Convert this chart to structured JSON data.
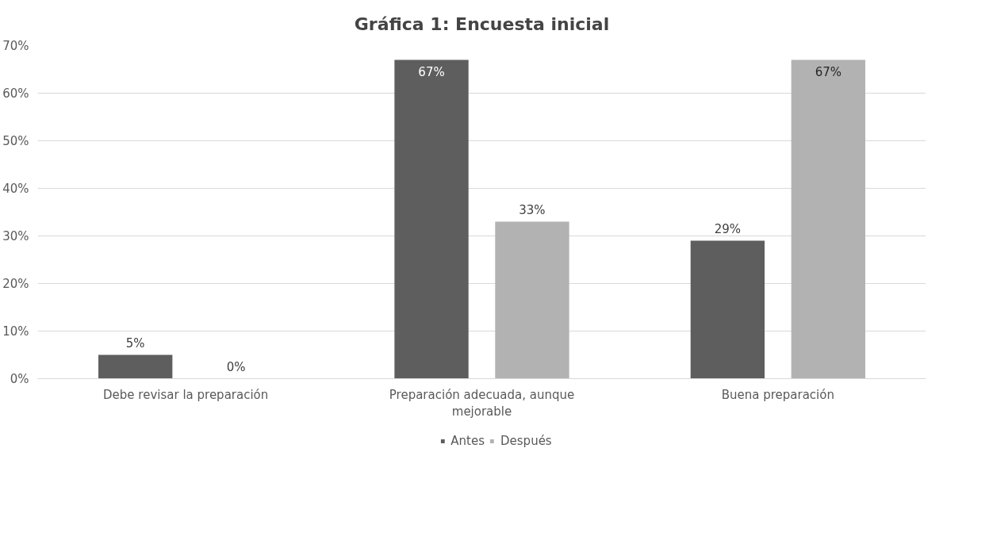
{
  "chart_data": {
    "type": "bar",
    "title": "Gráfica 1: Encuesta inicial",
    "categories": [
      "Debe revisar la preparación",
      "Preparación adecuada, aunque mejorable",
      "Buena preparación"
    ],
    "series": [
      {
        "name": "Antes",
        "color": "#5e5e5e",
        "values": [
          5,
          67,
          29
        ]
      },
      {
        "name": "Después",
        "color": "#b2b2b2",
        "values": [
          0,
          33,
          67
        ]
      }
    ],
    "ylim": [
      0,
      70
    ],
    "yticks": [
      {
        "value": 0,
        "label": "0%"
      },
      {
        "value": 10,
        "label": "10%"
      },
      {
        "value": 20,
        "label": "20%"
      },
      {
        "value": 30,
        "label": "30%"
      },
      {
        "value": 40,
        "label": "40%"
      },
      {
        "value": 50,
        "label": "50%"
      },
      {
        "value": 60,
        "label": "60%"
      },
      {
        "value": 70,
        "label": "70%"
      }
    ],
    "value_labels": [
      [
        "5%",
        "67%",
        "29%"
      ],
      [
        "0%",
        "33%",
        "67%"
      ]
    ],
    "grid": "y",
    "legend": "bottom"
  }
}
